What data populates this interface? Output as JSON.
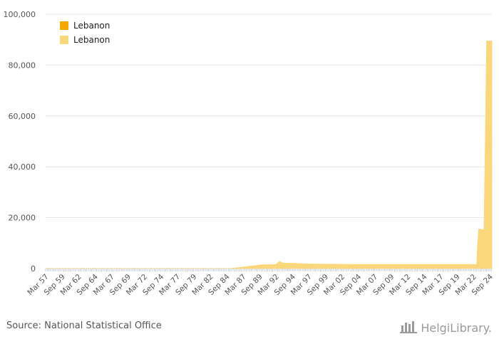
{
  "chart_data": {
    "type": "area",
    "title": "",
    "xlabel": "",
    "ylabel": "",
    "ylim": [
      0,
      100000
    ],
    "yticks": [
      "0",
      "20,000",
      "40,000",
      "60,000",
      "80,000",
      "100,000"
    ],
    "ytick_values": [
      0,
      20000,
      40000,
      60000,
      80000,
      100000
    ],
    "x_tick_labels": [
      "Mar 57",
      "Sep 59",
      "Mar 62",
      "Sep 64",
      "Mar 67",
      "Sep 69",
      "Mar 72",
      "Sep 74",
      "Mar 77",
      "Sep 79",
      "Mar 82",
      "Sep 84",
      "Mar 87",
      "Sep 89",
      "Mar 92",
      "Sep 94",
      "Mar 97",
      "Sep 99",
      "Mar 02",
      "Sep 04",
      "Mar 07",
      "Sep 09",
      "Mar 12",
      "Sep 14",
      "Mar 17",
      "Sep 19",
      "Mar 22",
      "Sep 24"
    ],
    "x_range": [
      1957.0,
      2024.8
    ],
    "legend": [
      {
        "name": "Lebanon",
        "color": "#f5a800"
      },
      {
        "name": "Lebanon",
        "color": "#fad77a"
      }
    ],
    "series": [
      {
        "name": "Lebanon",
        "color": "#fad77a",
        "x": [
          1957.0,
          1985.0,
          1986.0,
          1987.0,
          1988.0,
          1989.0,
          1990.0,
          1991.0,
          1992.0,
          1992.5,
          1993.0,
          1994.0,
          1995.0,
          1997.0,
          2000.0,
          2005.0,
          2010.0,
          2015.0,
          2019.0,
          2020.0,
          2021.0,
          2022.0,
          2022.5,
          2022.6,
          2022.8,
          2023.0,
          2023.3,
          2023.6,
          2023.8,
          2024.0,
          2024.2,
          2024.8
        ],
        "values": [
          0,
          0,
          300,
          600,
          900,
          1200,
          1500,
          1500,
          1600,
          2800,
          2200,
          2100,
          2000,
          1800,
          1700,
          1600,
          1600,
          1600,
          1600,
          1600,
          1600,
          1600,
          1600,
          8000,
          15500,
          15500,
          15300,
          15300,
          50000,
          89500,
          89500,
          89500
        ]
      }
    ]
  },
  "footer": {
    "source": "Source: National Statistical Office",
    "brand": "HelgiLibrary."
  }
}
